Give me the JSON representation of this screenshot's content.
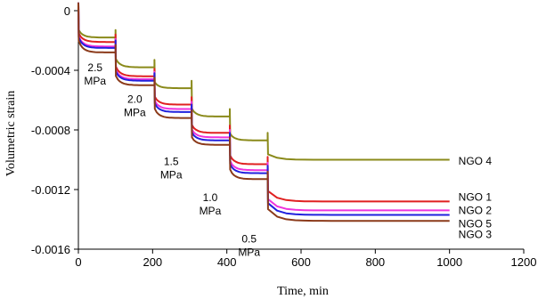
{
  "chart_data": {
    "type": "line",
    "xlabel": "Time, min",
    "ylabel": "Volumetric strain",
    "xlim": [
      0,
      1200
    ],
    "ylim": [
      -0.0016,
      0
    ],
    "x_ticks": [
      "0",
      "200",
      "400",
      "600",
      "800",
      "1000",
      "1200"
    ],
    "y_ticks": [
      "0",
      "-0.0004",
      "-0.0008",
      "-0.0012",
      "-0.0016"
    ],
    "grid": false,
    "annotations": [
      {
        "line1": "2.5",
        "line2": "MPa"
      },
      {
        "line1": "2.0",
        "line2": "MPa"
      },
      {
        "line1": "1.5",
        "line2": "MPa"
      },
      {
        "line1": "1.0",
        "line2": "MPa"
      },
      {
        "line1": "0.5",
        "line2": "MPa"
      }
    ],
    "series": [
      {
        "name": "NGO 4",
        "color": "#8a8a1a",
        "levels": [
          -0.00018,
          -0.00038,
          -0.00052,
          -0.00071,
          -0.00087,
          -0.001
        ],
        "label_y": -0.00101
      },
      {
        "name": "NGO 1",
        "color": "#e02020",
        "levels": [
          -0.00021,
          -0.00044,
          -0.00063,
          -0.00082,
          -0.00103,
          -0.00128
        ],
        "label_y": -0.00125
      },
      {
        "name": "NGO 2",
        "color": "#ee33dd",
        "levels": [
          -0.00024,
          -0.00046,
          -0.00066,
          -0.00085,
          -0.00107,
          -0.00134
        ],
        "label_y": -0.00134
      },
      {
        "name": "NGO 5",
        "color": "#2020dd",
        "levels": [
          -0.00025,
          -0.00047,
          -0.00068,
          -0.00087,
          -0.00109,
          -0.00137
        ],
        "label_y": -0.00143
      },
      {
        "name": "NGO 3",
        "color": "#8b3a1a",
        "levels": [
          -0.00028,
          -0.0005,
          -0.00072,
          -0.0009,
          -0.00113,
          -0.00141
        ],
        "label_y": -0.0015
      }
    ],
    "step_times": [
      0,
      100,
      205,
      305,
      408,
      510
    ],
    "end_time": 1000
  }
}
